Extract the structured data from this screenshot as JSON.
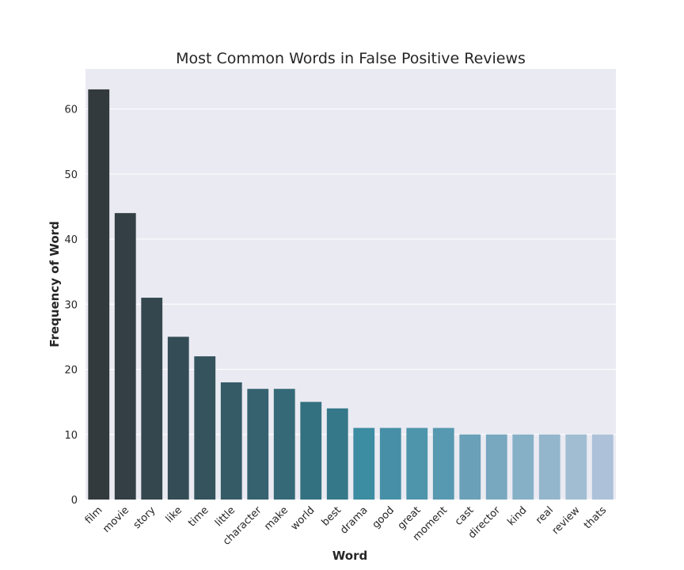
{
  "chart_data": {
    "type": "bar",
    "title": "Most Common Words in False Positive Reviews",
    "xlabel": "Word",
    "ylabel": "Frequency of Word",
    "categories": [
      "film",
      "movie",
      "story",
      "like",
      "time",
      "little",
      "character",
      "make",
      "world",
      "best",
      "drama",
      "good",
      "great",
      "moment",
      "cast",
      "director",
      "kind",
      "real",
      "review",
      "thats"
    ],
    "values": [
      63,
      44,
      31,
      25,
      22,
      18,
      17,
      17,
      15,
      14,
      11,
      11,
      11,
      11,
      10,
      10,
      10,
      10,
      10,
      10
    ],
    "yticks": [
      0,
      10,
      20,
      30,
      40,
      50,
      60
    ],
    "ylim": [
      0,
      66.15
    ],
    "grid": true,
    "legend": "none",
    "colors": [
      "#333a3d",
      "#333f44",
      "#34474e",
      "#344c55",
      "#34535d",
      "#355b66",
      "#366270",
      "#356977",
      "#347180",
      "#35788a",
      "#3c8ca2",
      "#468fa7",
      "#4e95ab",
      "#5699b0",
      "#6aa0b8",
      "#78a8c0",
      "#86b0c6",
      "#94b6cc",
      "#a0bdd2",
      "#adc1d9"
    ],
    "background_color": "#eaeaf2",
    "grid_color": "#ffffff"
  }
}
